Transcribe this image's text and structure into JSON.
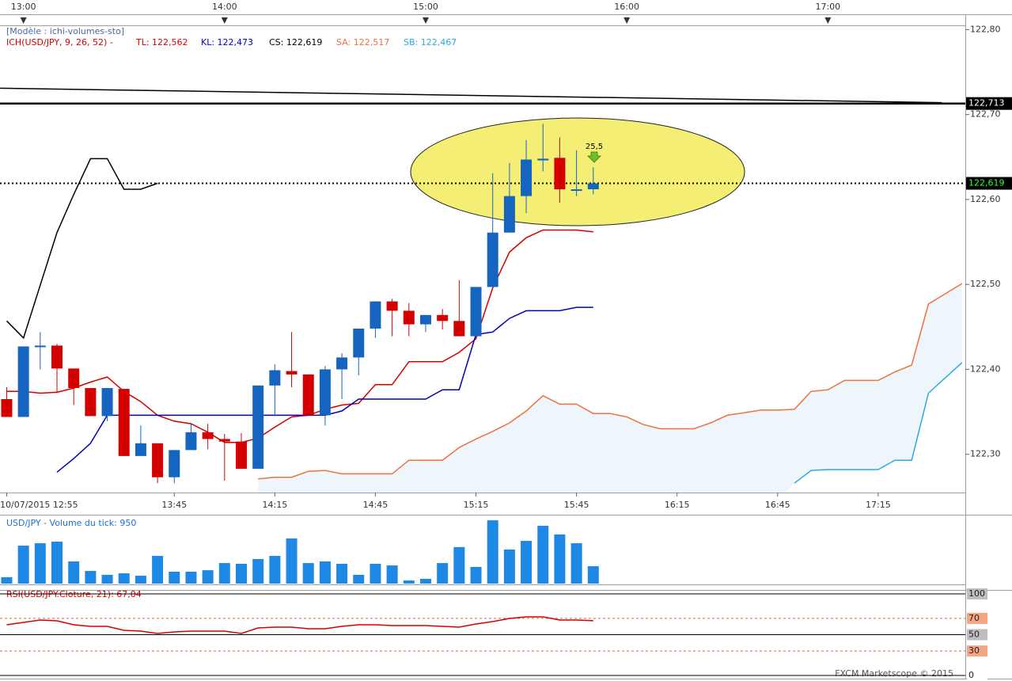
{
  "chart_data": [
    {
      "type": "candlestick",
      "model": "[Modèle : ichi-volumes-sto]",
      "indicator": "ICH(USD/JPY, 9, 26, 52) -",
      "xlim": [
        -7,
        281
      ],
      "ylim": [
        122.255,
        122.805
      ],
      "xticks": [
        {
          "value": 0,
          "label": "13:00"
        },
        {
          "value": 60,
          "label": "14:00"
        },
        {
          "value": 120,
          "label": "15:00"
        },
        {
          "value": 180,
          "label": "16:00"
        },
        {
          "value": 240,
          "label": "17:00"
        }
      ],
      "x2ticks": [
        {
          "value": -5,
          "label": "10/07/2015 12:55"
        },
        {
          "value": 45,
          "label": "13:45"
        },
        {
          "value": 75,
          "label": "14:15"
        },
        {
          "value": 105,
          "label": "14:45"
        },
        {
          "value": 135,
          "label": "15:15"
        },
        {
          "value": 165,
          "label": "15:45"
        },
        {
          "value": 195,
          "label": "16:15"
        },
        {
          "value": 225,
          "label": "16:45"
        },
        {
          "value": 255,
          "label": "17:15"
        }
      ],
      "yticks": [
        {
          "value": 122.3,
          "label": "122,30"
        },
        {
          "value": 122.4,
          "label": "122,40"
        },
        {
          "value": 122.5,
          "label": "122,50"
        },
        {
          "value": 122.6,
          "label": "122,60"
        },
        {
          "value": 122.7,
          "label": "122,70"
        },
        {
          "value": 122.8,
          "label": "122,80"
        }
      ],
      "up_color": "#1565c0",
      "down_color": "#d40000",
      "x": [
        -5,
        0,
        5,
        10,
        15,
        20,
        25,
        30,
        35,
        40,
        45,
        50,
        55,
        60,
        65,
        70,
        75,
        80,
        85,
        90,
        95,
        100,
        105,
        110,
        115,
        120,
        125,
        130,
        135,
        140,
        145,
        150,
        155,
        160,
        165,
        170
      ],
      "open": [
        122.365,
        122.344,
        122.427,
        122.428,
        122.401,
        122.378,
        122.345,
        122.377,
        122.298,
        122.313,
        122.273,
        122.305,
        122.326,
        122.318,
        122.315,
        122.283,
        122.381,
        122.398,
        122.394,
        122.346,
        122.4,
        122.414,
        122.448,
        122.48,
        122.469,
        122.453,
        122.464,
        122.457,
        122.439,
        122.497,
        122.561,
        122.604,
        122.646,
        122.649,
        122.612,
        122.612
      ],
      "high": [
        122.379,
        122.427,
        122.444,
        122.43,
        122.401,
        122.378,
        122.378,
        122.377,
        122.334,
        122.313,
        122.305,
        122.337,
        122.336,
        122.324,
        122.325,
        122.381,
        122.406,
        122.444,
        122.394,
        122.404,
        122.419,
        122.448,
        122.48,
        122.483,
        122.478,
        122.464,
        122.471,
        122.505,
        122.497,
        122.631,
        122.643,
        122.67,
        122.689,
        122.673,
        122.658,
        122.638
      ],
      "low": [
        122.344,
        122.344,
        122.4,
        122.372,
        122.358,
        122.345,
        122.339,
        122.298,
        122.298,
        122.266,
        122.266,
        122.305,
        122.306,
        122.269,
        122.283,
        122.283,
        122.345,
        122.379,
        122.346,
        122.334,
        122.365,
        122.393,
        122.437,
        122.439,
        122.439,
        122.444,
        122.447,
        122.439,
        122.439,
        122.497,
        122.561,
        122.584,
        122.633,
        122.596,
        122.604,
        122.606
      ],
      "close": [
        122.344,
        122.427,
        122.428,
        122.401,
        122.378,
        122.345,
        122.378,
        122.298,
        122.313,
        122.273,
        122.305,
        122.326,
        122.318,
        122.315,
        122.283,
        122.381,
        122.399,
        122.394,
        122.346,
        122.4,
        122.414,
        122.448,
        122.48,
        122.469,
        122.453,
        122.464,
        122.457,
        122.439,
        122.497,
        122.561,
        122.604,
        122.647,
        122.648,
        122.612,
        122.612,
        122.619
      ],
      "series": [
        {
          "name": "TL: 122,562",
          "color": "#d40000",
          "x": [
            -5,
            0,
            5,
            10,
            15,
            20,
            25,
            30,
            35,
            40,
            45,
            50,
            55,
            60,
            65,
            70,
            75,
            80,
            85,
            90,
            95,
            100,
            105,
            110,
            115,
            120,
            125,
            130,
            135,
            140,
            145,
            150,
            155,
            160,
            165,
            170
          ],
          "values": [
            122.374,
            122.374,
            122.372,
            122.373,
            122.378,
            122.385,
            122.391,
            122.374,
            122.362,
            122.346,
            122.339,
            122.336,
            122.326,
            122.314,
            122.314,
            122.319,
            122.332,
            122.344,
            122.346,
            122.353,
            122.358,
            122.36,
            122.382,
            122.382,
            122.409,
            122.409,
            122.409,
            122.42,
            122.436,
            122.496,
            122.538,
            122.555,
            122.564,
            122.564,
            122.564,
            122.562
          ]
        },
        {
          "name": "KL: 122,473",
          "color": "#0000c0",
          "x": [
            10,
            15,
            20,
            25,
            30,
            35,
            40,
            45,
            50,
            55,
            60,
            65,
            70,
            75,
            80,
            85,
            90,
            95,
            100,
            105,
            110,
            115,
            120,
            125,
            130,
            135,
            140,
            145,
            150,
            155,
            160,
            165,
            170
          ],
          "values": [
            122.279,
            122.295,
            122.313,
            122.346,
            122.346,
            122.346,
            122.346,
            122.346,
            122.346,
            122.346,
            122.346,
            122.346,
            122.346,
            122.346,
            122.346,
            122.346,
            122.346,
            122.351,
            122.365,
            122.365,
            122.365,
            122.365,
            122.365,
            122.376,
            122.376,
            122.441,
            122.444,
            122.46,
            122.469,
            122.469,
            122.469,
            122.473,
            122.473
          ]
        },
        {
          "name": "CS: 122,619",
          "color": "#000000",
          "x": [
            -5,
            0,
            5,
            10,
            15,
            20,
            25,
            30,
            35,
            40
          ],
          "values": [
            122.457,
            122.437,
            122.499,
            122.561,
            122.606,
            122.648,
            122.648,
            122.612,
            122.612,
            122.619
          ]
        },
        {
          "name": "SA: 122,517",
          "color": "#f07040",
          "x": [
            70,
            75,
            80,
            85,
            90,
            95,
            100,
            105,
            110,
            115,
            120,
            125,
            130,
            135,
            140,
            145,
            150,
            155,
            160,
            165,
            170,
            175,
            180,
            185,
            190,
            195,
            200,
            205,
            210,
            215,
            220,
            225,
            230,
            235,
            240,
            245,
            250,
            255,
            260,
            265,
            270,
            275,
            280
          ],
          "values": [
            122.271,
            122.273,
            122.273,
            122.28,
            122.281,
            122.277,
            122.277,
            122.277,
            122.277,
            122.293,
            122.293,
            122.293,
            122.308,
            122.318,
            122.327,
            122.337,
            122.351,
            122.369,
            122.359,
            122.359,
            122.348,
            122.348,
            122.344,
            122.335,
            122.33,
            122.33,
            122.33,
            122.337,
            122.346,
            122.349,
            122.352,
            122.352,
            122.353,
            122.374,
            122.376,
            122.387,
            122.387,
            122.387,
            122.397,
            122.405,
            122.477,
            122.489,
            122.501
          ]
        },
        {
          "name": "SB: 122,467",
          "color": "#29abe2",
          "x": [
            230,
            235,
            240,
            245,
            250,
            255,
            260,
            265,
            270,
            275,
            280
          ],
          "values": [
            122.266,
            122.281,
            122.282,
            122.282,
            122.282,
            122.282,
            122.293,
            122.293,
            122.372,
            122.39,
            122.408
          ]
        }
      ],
      "cloud_color": "#eef6fb",
      "trendline": {
        "color": "#000000",
        "x": [
          -7,
          274
        ],
        "values": [
          122.731,
          122.714
        ]
      },
      "levels": [
        {
          "value": 122.713,
          "label": "122,713",
          "style": "solid",
          "label_color": "#ffffff"
        },
        {
          "value": 122.619,
          "label": "122,619",
          "style": "dotted",
          "label_color": "#33ff33"
        }
      ],
      "annotation": "25,5"
    },
    {
      "type": "bar",
      "title": "USD/JPY - Volume du tick: 950",
      "color": "#1e88e5",
      "xlim": [
        -7,
        281
      ],
      "ylim": [
        0,
        3670
      ],
      "x": [
        -5,
        0,
        5,
        10,
        15,
        20,
        25,
        30,
        35,
        40,
        45,
        50,
        55,
        60,
        65,
        70,
        75,
        80,
        85,
        90,
        95,
        100,
        105,
        110,
        115,
        120,
        125,
        130,
        135,
        140,
        145,
        150,
        155,
        160,
        165,
        170
      ],
      "values": [
        350,
        2070,
        2200,
        2290,
        1210,
        690,
        480,
        560,
        430,
        1510,
        650,
        650,
        730,
        1120,
        1080,
        1340,
        1510,
        2460,
        1120,
        1210,
        1080,
        480,
        1080,
        990,
        170,
        260,
        1120,
        1990,
        910,
        3450,
        1860,
        2330,
        3150,
        2680,
        2200,
        950
      ]
    },
    {
      "type": "line",
      "title": "RSI(USD/JPY.Cloture, 21): 67,04",
      "color": "#d40000",
      "xlim": [
        -7,
        281
      ],
      "ylim": [
        0,
        100
      ],
      "yticks": [
        0,
        30,
        50,
        70,
        100
      ],
      "grid_styles": [
        "solid",
        "dashed",
        "solid",
        "dashed",
        "solid"
      ],
      "label_colors": [
        "#ffffff",
        "#f4a582",
        "#bdbdbd",
        "#f4a582",
        "#bdbdbd"
      ],
      "x": [
        -5,
        0,
        5,
        10,
        15,
        20,
        25,
        30,
        35,
        40,
        45,
        50,
        55,
        60,
        65,
        70,
        75,
        80,
        85,
        90,
        95,
        100,
        105,
        110,
        115,
        120,
        125,
        130,
        135,
        140,
        145,
        150,
        155,
        160,
        165,
        170
      ],
      "values": [
        62.1,
        65.0,
        68.0,
        67.0,
        62.1,
        60.2,
        60.2,
        55.3,
        54.4,
        51.5,
        53.4,
        54.4,
        54.4,
        54.4,
        51.5,
        58.3,
        59.2,
        59.2,
        57.3,
        57.3,
        60.2,
        62.1,
        62.1,
        61.2,
        61.2,
        61.2,
        60.2,
        59.2,
        63.1,
        66.0,
        69.9,
        71.8,
        71.8,
        68.0,
        68.0,
        67.04
      ]
    }
  ],
  "footer": "FXCM Marketscope © 2015"
}
